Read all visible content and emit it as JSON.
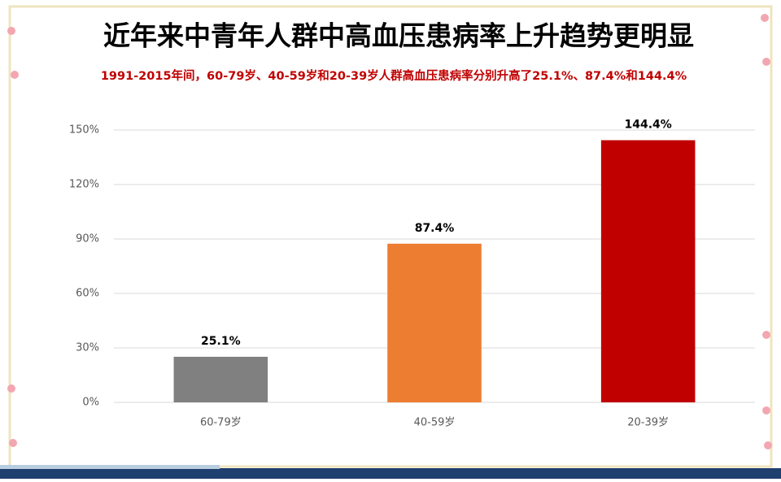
{
  "chart_data": {
    "type": "bar",
    "title": "近年来中青年人群中高血压患病率上升趋势更明显",
    "subtitle": "1991-2015年间，60-79岁、40-59岁和20-39岁人群高血压患病率分别升高了25.1%、87.4%和144.4%",
    "categories": [
      "60-79岁",
      "40-59岁",
      "20-39岁"
    ],
    "values": [
      25.1,
      87.4,
      144.4
    ],
    "value_labels": [
      "25.1%",
      "87.4%",
      "144.4%"
    ],
    "colors": [
      "#808080",
      "#ed7d31",
      "#c00000"
    ],
    "ylim": [
      0,
      150
    ],
    "yticks": [
      {
        "value": 0,
        "label": "0%"
      },
      {
        "value": 30,
        "label": "30%"
      },
      {
        "value": 60,
        "label": "60%"
      },
      {
        "value": 90,
        "label": "90%"
      },
      {
        "value": 120,
        "label": "120%"
      },
      {
        "value": 150,
        "label": "150%"
      }
    ],
    "grid": true
  }
}
